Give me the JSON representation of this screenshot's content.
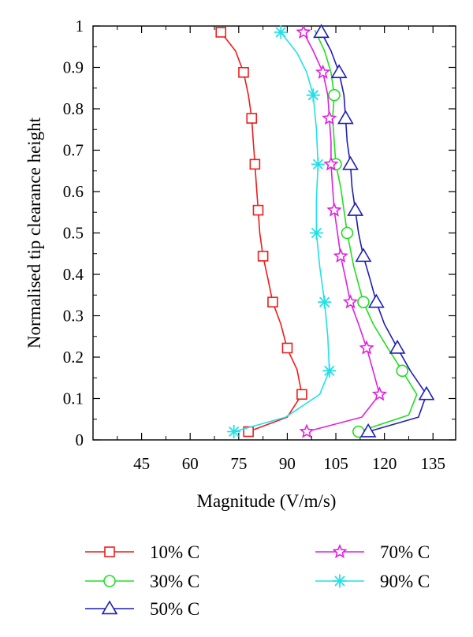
{
  "chart_data": {
    "type": "line",
    "xlabel": "Magnitude (V/m/s)",
    "ylabel": "Normalised tip clearance height",
    "xlim": [
      30,
      142
    ],
    "ylim": [
      0,
      1
    ],
    "xticks": [
      45,
      60,
      75,
      90,
      105,
      120,
      135
    ],
    "yticks": [
      0,
      0.1,
      0.2,
      0.3,
      0.4,
      0.5,
      0.6,
      0.7,
      0.8,
      0.9,
      1
    ],
    "xtick_labels": [
      "45",
      "60",
      "75",
      "90",
      "105",
      "120",
      "135"
    ],
    "ytick_labels": [
      "0",
      "0.1",
      "0.2",
      "0.3",
      "0.4",
      "0.5",
      "0.6",
      "0.7",
      "0.8",
      "0.9",
      "1"
    ],
    "grid": false,
    "legend_position": "bottom",
    "series": [
      {
        "name": "10% C",
        "color": "#ee1c1c",
        "marker": "square",
        "line": [
          [
            78,
            0.02
          ],
          [
            90,
            0.055
          ],
          [
            94.5,
            0.11
          ],
          [
            93,
            0.17
          ],
          [
            90,
            0.22
          ],
          [
            88,
            0.28
          ],
          [
            85.5,
            0.333
          ],
          [
            84,
            0.39
          ],
          [
            82.5,
            0.444
          ],
          [
            81.5,
            0.5
          ],
          [
            81,
            0.555
          ],
          [
            80.5,
            0.61
          ],
          [
            80,
            0.666
          ],
          [
            79.5,
            0.72
          ],
          [
            79,
            0.777
          ],
          [
            78,
            0.833
          ],
          [
            76.5,
            0.888
          ],
          [
            74,
            0.94
          ],
          [
            69.5,
            0.985
          ]
        ],
        "markers": [
          [
            78,
            0.02
          ],
          [
            94.5,
            0.11
          ],
          [
            90,
            0.222
          ],
          [
            85.5,
            0.333
          ],
          [
            82.5,
            0.444
          ],
          [
            81,
            0.555
          ],
          [
            80,
            0.666
          ],
          [
            79,
            0.777
          ],
          [
            76.5,
            0.888
          ],
          [
            69.5,
            0.985
          ]
        ]
      },
      {
        "name": "30% C",
        "color": "#22dd22",
        "marker": "circle",
        "line": [
          [
            112,
            0.02
          ],
          [
            127.5,
            0.06
          ],
          [
            130,
            0.11
          ],
          [
            125.5,
            0.167
          ],
          [
            121,
            0.222
          ],
          [
            116.5,
            0.28
          ],
          [
            113.5,
            0.333
          ],
          [
            110.5,
            0.42
          ],
          [
            108.5,
            0.5
          ],
          [
            106.5,
            0.61
          ],
          [
            105,
            0.666
          ],
          [
            104.5,
            0.72
          ],
          [
            104,
            0.777
          ],
          [
            104.5,
            0.833
          ],
          [
            103.5,
            0.888
          ],
          [
            101.5,
            0.94
          ],
          [
            98.5,
            0.99
          ]
        ],
        "markers": [
          [
            112,
            0.02
          ],
          [
            125.5,
            0.167
          ],
          [
            113.5,
            0.333
          ],
          [
            108.5,
            0.5
          ],
          [
            105,
            0.666
          ],
          [
            104.5,
            0.833
          ]
        ]
      },
      {
        "name": "50% C",
        "color": "#1f1fb4",
        "marker": "triangle",
        "line": [
          [
            115,
            0.02
          ],
          [
            130.5,
            0.055
          ],
          [
            133,
            0.11
          ],
          [
            128,
            0.167
          ],
          [
            124,
            0.222
          ],
          [
            120,
            0.28
          ],
          [
            117.5,
            0.333
          ],
          [
            115.5,
            0.39
          ],
          [
            113.5,
            0.444
          ],
          [
            112,
            0.5
          ],
          [
            111,
            0.555
          ],
          [
            110,
            0.61
          ],
          [
            109.5,
            0.666
          ],
          [
            108.5,
            0.72
          ],
          [
            108,
            0.777
          ],
          [
            107.5,
            0.833
          ],
          [
            106,
            0.888
          ],
          [
            103.5,
            0.94
          ],
          [
            100.5,
            0.985
          ]
        ],
        "markers": [
          [
            115,
            0.02
          ],
          [
            133,
            0.11
          ],
          [
            124,
            0.222
          ],
          [
            117.5,
            0.333
          ],
          [
            113.5,
            0.444
          ],
          [
            111,
            0.555
          ],
          [
            109.5,
            0.666
          ],
          [
            108,
            0.777
          ],
          [
            106,
            0.888
          ],
          [
            100.5,
            0.985
          ]
        ]
      },
      {
        "name": "70% C",
        "color": "#e020e0",
        "marker": "star",
        "line": [
          [
            96,
            0.02
          ],
          [
            113,
            0.055
          ],
          [
            118.5,
            0.11
          ],
          [
            116.5,
            0.167
          ],
          [
            114.5,
            0.222
          ],
          [
            112,
            0.28
          ],
          [
            109.5,
            0.333
          ],
          [
            108,
            0.39
          ],
          [
            106.5,
            0.444
          ],
          [
            105.5,
            0.5
          ],
          [
            104.5,
            0.555
          ],
          [
            104,
            0.61
          ],
          [
            103.5,
            0.666
          ],
          [
            103.5,
            0.72
          ],
          [
            103,
            0.777
          ],
          [
            102.5,
            0.833
          ],
          [
            101,
            0.888
          ],
          [
            98,
            0.94
          ],
          [
            95,
            0.985
          ]
        ],
        "markers": [
          [
            96,
            0.02
          ],
          [
            118.5,
            0.11
          ],
          [
            114.5,
            0.222
          ],
          [
            109.5,
            0.333
          ],
          [
            106.5,
            0.444
          ],
          [
            104.5,
            0.555
          ],
          [
            103.5,
            0.666
          ],
          [
            103,
            0.777
          ],
          [
            101,
            0.888
          ],
          [
            95,
            0.985
          ]
        ]
      },
      {
        "name": "90% C",
        "color": "#22e0e8",
        "marker": "asterisk",
        "line": [
          [
            73.5,
            0.02
          ],
          [
            89.5,
            0.055
          ],
          [
            100,
            0.11
          ],
          [
            103,
            0.167
          ],
          [
            102.5,
            0.25
          ],
          [
            101.5,
            0.333
          ],
          [
            100,
            0.42
          ],
          [
            99,
            0.5
          ],
          [
            99,
            0.583
          ],
          [
            99.5,
            0.666
          ],
          [
            99,
            0.75
          ],
          [
            98,
            0.833
          ],
          [
            96,
            0.888
          ],
          [
            93,
            0.935
          ],
          [
            88,
            0.985
          ]
        ],
        "markers": [
          [
            73.5,
            0.02
          ],
          [
            103,
            0.167
          ],
          [
            101.5,
            0.333
          ],
          [
            99,
            0.5
          ],
          [
            99.5,
            0.666
          ],
          [
            98,
            0.833
          ],
          [
            88,
            0.985
          ]
        ]
      }
    ]
  }
}
